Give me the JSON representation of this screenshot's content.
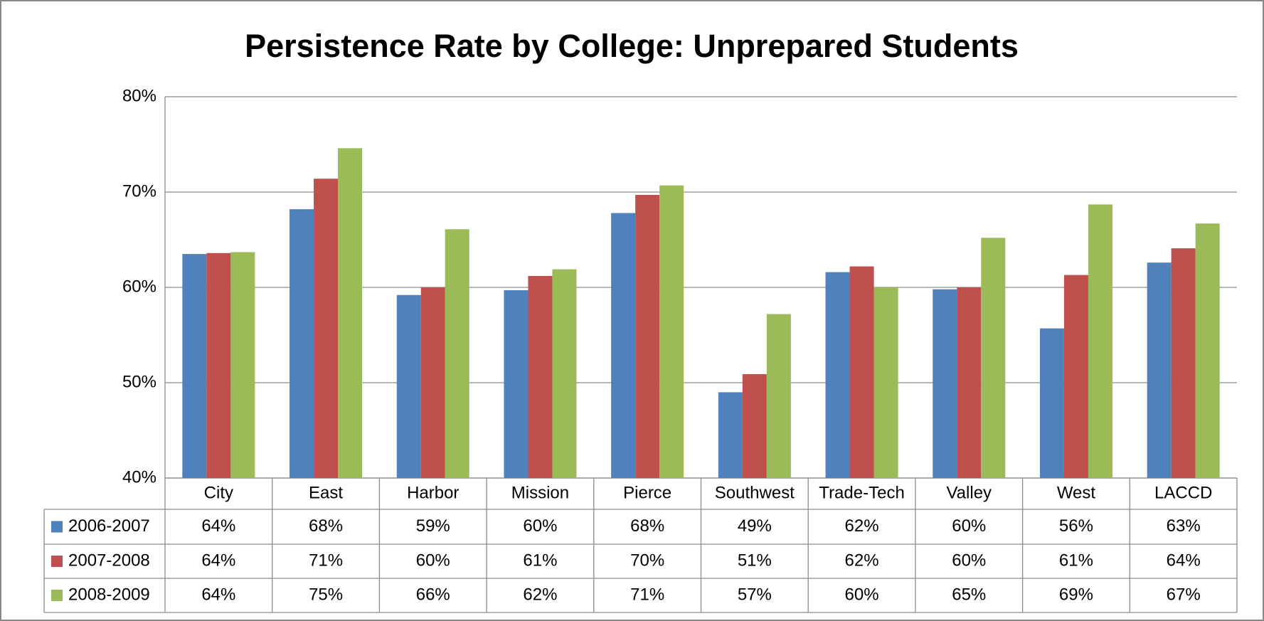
{
  "chart_data": {
    "type": "bar",
    "title": "Persistence Rate by College: Unprepared Students",
    "categories": [
      "City",
      "East",
      "Harbor",
      "Mission",
      "Pierce",
      "Southwest",
      "Trade-Tech",
      "Valley",
      "West",
      "LACCD"
    ],
    "series": [
      {
        "name": "2006-2007",
        "color": "#4f81bd",
        "values": [
          63.5,
          68.2,
          59.2,
          59.7,
          67.8,
          49.0,
          61.6,
          59.8,
          55.7,
          62.6
        ],
        "value_labels": [
          "64%",
          "68%",
          "59%",
          "60%",
          "68%",
          "49%",
          "62%",
          "60%",
          "56%",
          "63%"
        ]
      },
      {
        "name": "2007-2008",
        "color": "#c0504d",
        "values": [
          63.6,
          71.4,
          60.0,
          61.2,
          69.7,
          50.9,
          62.2,
          60.0,
          61.3,
          64.1
        ],
        "value_labels": [
          "64%",
          "71%",
          "60%",
          "61%",
          "70%",
          "51%",
          "62%",
          "60%",
          "61%",
          "64%"
        ]
      },
      {
        "name": "2008-2009",
        "color": "#9bbb59",
        "values": [
          63.7,
          74.6,
          66.1,
          61.9,
          70.7,
          57.2,
          60.0,
          65.2,
          68.7,
          66.7
        ],
        "value_labels": [
          "64%",
          "75%",
          "66%",
          "62%",
          "71%",
          "57%",
          "60%",
          "65%",
          "69%",
          "67%"
        ]
      }
    ],
    "ylim": [
      40,
      80
    ],
    "yticks": [
      {
        "value": 40,
        "label": "40%"
      },
      {
        "value": 50,
        "label": "50%"
      },
      {
        "value": 60,
        "label": "60%"
      },
      {
        "value": 70,
        "label": "70%"
      },
      {
        "value": 80,
        "label": "80%"
      }
    ],
    "grid": true
  }
}
